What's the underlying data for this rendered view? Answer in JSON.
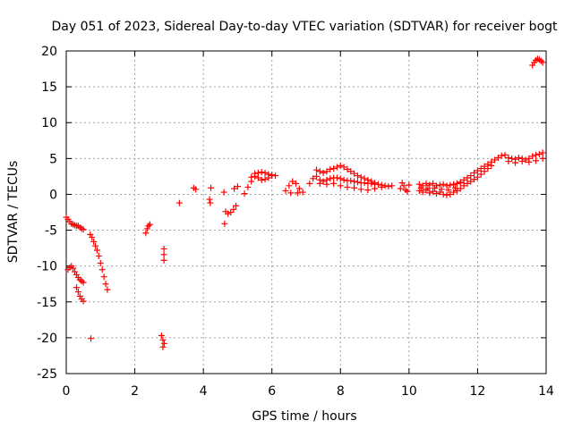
{
  "chart_data": {
    "type": "scatter",
    "title": "Day 051 of 2023, Sidereal Day-to-day VTEC variation (SDTVAR) for receiver bogt",
    "xlabel": "GPS time / hours",
    "ylabel": "SDTVAR / TECUs",
    "xlim": [
      0,
      14
    ],
    "ylim": [
      -25,
      20
    ],
    "xticks": [
      0,
      2,
      4,
      6,
      8,
      10,
      12,
      14
    ],
    "yticks": [
      20,
      15,
      10,
      5,
      0,
      -5,
      -10,
      -15,
      -20,
      -25
    ],
    "grid": true,
    "marker": "+",
    "color": "#ff0000",
    "series": [
      {
        "name": "SDTVAR",
        "points": [
          [
            0.0,
            -3.2
          ],
          [
            0.05,
            -3.5
          ],
          [
            0.1,
            -3.8
          ],
          [
            0.15,
            -4.1
          ],
          [
            0.2,
            -4.2
          ],
          [
            0.25,
            -4.3
          ],
          [
            0.3,
            -4.4
          ],
          [
            0.35,
            -4.4
          ],
          [
            0.4,
            -4.6
          ],
          [
            0.45,
            -4.8
          ],
          [
            0.5,
            -4.9
          ],
          [
            0.05,
            -10.5
          ],
          [
            0.1,
            -10.2
          ],
          [
            0.15,
            -10.0
          ],
          [
            0.2,
            -10.3
          ],
          [
            0.25,
            -10.8
          ],
          [
            0.3,
            -11.2
          ],
          [
            0.35,
            -11.6
          ],
          [
            0.4,
            -11.9
          ],
          [
            0.45,
            -12.1
          ],
          [
            0.5,
            -12.3
          ],
          [
            0.3,
            -13.0
          ],
          [
            0.35,
            -13.6
          ],
          [
            0.4,
            -14.2
          ],
          [
            0.45,
            -14.6
          ],
          [
            0.5,
            -14.9
          ],
          [
            0.7,
            -5.6
          ],
          [
            0.75,
            -6.0
          ],
          [
            0.8,
            -6.6
          ],
          [
            0.85,
            -7.2
          ],
          [
            0.9,
            -7.8
          ],
          [
            0.95,
            -8.6
          ],
          [
            1.0,
            -9.6
          ],
          [
            1.05,
            -10.5
          ],
          [
            1.1,
            -11.5
          ],
          [
            1.15,
            -12.5
          ],
          [
            1.2,
            -13.3
          ],
          [
            0.72,
            -20.1
          ],
          [
            2.32,
            -5.4
          ],
          [
            2.36,
            -4.8
          ],
          [
            2.4,
            -4.4
          ],
          [
            2.44,
            -4.2
          ],
          [
            2.78,
            -19.7
          ],
          [
            2.82,
            -20.3
          ],
          [
            2.86,
            -20.8
          ],
          [
            2.82,
            -21.3
          ],
          [
            2.85,
            -7.6
          ],
          [
            2.85,
            -8.4
          ],
          [
            2.85,
            -9.2
          ],
          [
            3.3,
            -1.2
          ],
          [
            3.72,
            0.9
          ],
          [
            3.78,
            0.7
          ],
          [
            4.18,
            -0.7
          ],
          [
            4.2,
            -1.2
          ],
          [
            4.22,
            0.9
          ],
          [
            4.6,
            0.3
          ],
          [
            4.62,
            -4.1
          ],
          [
            4.65,
            -2.4
          ],
          [
            4.72,
            -2.7
          ],
          [
            4.8,
            -2.5
          ],
          [
            4.88,
            -2.1
          ],
          [
            4.95,
            -1.6
          ],
          [
            4.9,
            0.8
          ],
          [
            5.0,
            1.1
          ],
          [
            5.2,
            0.1
          ],
          [
            5.3,
            1.0
          ],
          [
            5.4,
            1.8
          ],
          [
            5.5,
            2.5
          ],
          [
            5.6,
            3.0
          ],
          [
            5.7,
            3.1
          ],
          [
            5.8,
            3.0
          ],
          [
            5.9,
            2.8
          ],
          [
            6.0,
            2.7
          ],
          [
            6.1,
            2.6
          ],
          [
            5.4,
            2.4
          ],
          [
            5.5,
            2.9
          ],
          [
            5.6,
            2.3
          ],
          [
            5.7,
            2.0
          ],
          [
            5.8,
            2.1
          ],
          [
            5.9,
            2.3
          ],
          [
            6.0,
            2.6
          ],
          [
            6.4,
            0.5
          ],
          [
            6.5,
            1.2
          ],
          [
            6.6,
            1.8
          ],
          [
            6.7,
            1.5
          ],
          [
            6.8,
            0.8
          ],
          [
            6.9,
            0.3
          ],
          [
            6.55,
            0.2
          ],
          [
            6.75,
            0.2
          ],
          [
            7.1,
            1.5
          ],
          [
            7.2,
            2.2
          ],
          [
            7.3,
            2.5
          ],
          [
            7.4,
            2.0
          ],
          [
            7.5,
            1.8
          ],
          [
            7.6,
            2.0
          ],
          [
            7.7,
            2.2
          ],
          [
            7.8,
            2.3
          ],
          [
            7.9,
            2.3
          ],
          [
            8.0,
            2.2
          ],
          [
            8.1,
            2.0
          ],
          [
            8.2,
            1.9
          ],
          [
            8.3,
            1.9
          ],
          [
            8.4,
            1.8
          ],
          [
            8.5,
            1.7
          ],
          [
            8.6,
            1.6
          ],
          [
            8.7,
            1.6
          ],
          [
            8.8,
            1.5
          ],
          [
            8.9,
            1.5
          ],
          [
            9.0,
            1.4
          ],
          [
            9.1,
            1.4
          ],
          [
            9.2,
            1.3
          ],
          [
            9.3,
            1.2
          ],
          [
            9.4,
            1.1
          ],
          [
            9.5,
            1.2
          ],
          [
            7.3,
            3.4
          ],
          [
            7.4,
            3.2
          ],
          [
            7.5,
            3.0
          ],
          [
            7.6,
            3.2
          ],
          [
            7.7,
            3.5
          ],
          [
            7.8,
            3.6
          ],
          [
            7.9,
            3.8
          ],
          [
            8.0,
            4.0
          ],
          [
            8.1,
            3.8
          ],
          [
            8.2,
            3.5
          ],
          [
            8.3,
            3.2
          ],
          [
            8.4,
            2.9
          ],
          [
            8.5,
            2.6
          ],
          [
            8.6,
            2.4
          ],
          [
            8.7,
            2.2
          ],
          [
            8.8,
            2.0
          ],
          [
            8.9,
            1.8
          ],
          [
            9.0,
            1.6
          ],
          [
            7.4,
            1.5
          ],
          [
            7.6,
            1.4
          ],
          [
            7.8,
            1.5
          ],
          [
            8.0,
            1.2
          ],
          [
            8.2,
            1.0
          ],
          [
            8.4,
            0.9
          ],
          [
            8.6,
            0.7
          ],
          [
            8.8,
            0.6
          ],
          [
            9.0,
            0.8
          ],
          [
            9.2,
            1.0
          ],
          [
            9.75,
            0.8
          ],
          [
            9.8,
            1.6
          ],
          [
            9.85,
            1.2
          ],
          [
            9.9,
            0.6
          ],
          [
            9.95,
            0.4
          ],
          [
            10.0,
            1.3
          ],
          [
            10.3,
            1.4
          ],
          [
            10.4,
            1.2
          ],
          [
            10.5,
            1.5
          ],
          [
            10.6,
            1.3
          ],
          [
            10.7,
            1.5
          ],
          [
            10.8,
            1.2
          ],
          [
            10.9,
            1.3
          ],
          [
            11.0,
            1.4
          ],
          [
            11.1,
            1.2
          ],
          [
            11.2,
            1.3
          ],
          [
            11.3,
            1.4
          ],
          [
            11.4,
            1.5
          ],
          [
            11.5,
            1.6
          ],
          [
            10.3,
            0.5
          ],
          [
            10.4,
            0.3
          ],
          [
            10.5,
            0.6
          ],
          [
            10.6,
            0.2
          ],
          [
            10.7,
            0.4
          ],
          [
            10.8,
            0.1
          ],
          [
            10.9,
            0.3
          ],
          [
            11.0,
            0.0
          ],
          [
            11.1,
            -0.1
          ],
          [
            11.2,
            0.0
          ],
          [
            11.3,
            0.3
          ],
          [
            11.4,
            0.5
          ],
          [
            11.5,
            0.8
          ],
          [
            10.35,
            0.9
          ],
          [
            10.55,
            0.8
          ],
          [
            10.75,
            0.9
          ],
          [
            10.95,
            0.7
          ],
          [
            11.15,
            0.6
          ],
          [
            11.35,
            0.9
          ],
          [
            11.5,
            1.7
          ],
          [
            11.6,
            2.0
          ],
          [
            11.7,
            2.3
          ],
          [
            11.8,
            2.6
          ],
          [
            11.9,
            3.0
          ],
          [
            12.0,
            3.3
          ],
          [
            12.1,
            3.6
          ],
          [
            12.2,
            3.9
          ],
          [
            12.3,
            4.2
          ],
          [
            12.4,
            4.5
          ],
          [
            12.5,
            4.8
          ],
          [
            12.6,
            5.1
          ],
          [
            12.7,
            5.4
          ],
          [
            12.8,
            5.5
          ],
          [
            11.6,
            1.2
          ],
          [
            11.7,
            1.5
          ],
          [
            11.8,
            1.8
          ],
          [
            11.9,
            2.1
          ],
          [
            12.0,
            2.4
          ],
          [
            12.1,
            2.8
          ],
          [
            12.2,
            3.2
          ],
          [
            12.3,
            3.6
          ],
          [
            12.4,
            4.0
          ],
          [
            12.9,
            5.1
          ],
          [
            13.0,
            5.0
          ],
          [
            13.1,
            4.9
          ],
          [
            13.2,
            5.1
          ],
          [
            13.3,
            5.0
          ],
          [
            13.4,
            4.8
          ],
          [
            13.5,
            5.0
          ],
          [
            13.6,
            5.3
          ],
          [
            13.7,
            5.5
          ],
          [
            13.8,
            5.6
          ],
          [
            13.9,
            5.8
          ],
          [
            12.9,
            4.6
          ],
          [
            13.1,
            4.4
          ],
          [
            13.3,
            4.6
          ],
          [
            13.5,
            4.5
          ],
          [
            13.7,
            4.7
          ],
          [
            13.9,
            5.0
          ],
          [
            13.6,
            18.0
          ],
          [
            13.65,
            18.4
          ],
          [
            13.7,
            18.7
          ],
          [
            13.75,
            18.9
          ],
          [
            13.8,
            18.8
          ],
          [
            13.85,
            18.6
          ],
          [
            13.9,
            18.4
          ]
        ]
      }
    ]
  }
}
